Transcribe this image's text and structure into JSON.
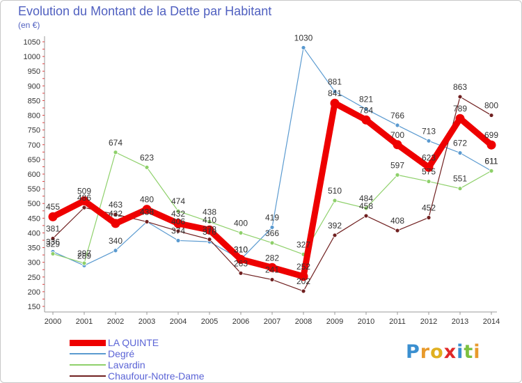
{
  "title": "Evolution du Montant de la Dette par Habitant",
  "subtitle": "(en €)",
  "logo": {
    "text": "Proxiti",
    "letters": [
      "P",
      "r",
      "o",
      "x",
      "i",
      "t",
      "i"
    ],
    "colors": [
      "#3a8fd0",
      "#e89a2c",
      "#e0b020",
      "#e02828",
      "#3a8fd0",
      "#7cc040",
      "#e89a2c"
    ]
  },
  "chart_data": {
    "type": "line",
    "title": "Evolution du Montant de la Dette par Habitant",
    "subtitle": "(en €)",
    "xlabel": "",
    "ylabel": "",
    "x": [
      "2000",
      "2001",
      "2002",
      "2003",
      "2004",
      "2005",
      "2006",
      "2007",
      "2008",
      "2009",
      "2010",
      "2011",
      "2012",
      "2013",
      "2014"
    ],
    "ylim": [
      150,
      1050
    ],
    "yticks": [
      150,
      200,
      250,
      300,
      350,
      400,
      450,
      500,
      550,
      600,
      650,
      700,
      750,
      800,
      850,
      900,
      950,
      1000,
      1050
    ],
    "grid": false,
    "legend_position": "bottom-left",
    "series": [
      {
        "name": "LA QUINTE",
        "color": "#ee0000",
        "values": [
          455,
          509,
          432,
          480,
          432,
          410,
          310,
          282,
          252,
          841,
          784,
          700,
          623,
          789,
          699
        ]
      },
      {
        "name": "Degré",
        "color": "#5a9ad0",
        "values": [
          336,
          289,
          340,
          438,
          374,
          370,
          310,
          419,
          1030,
          881,
          821,
          766,
          713,
          672,
          611
        ]
      },
      {
        "name": "Lavardin",
        "color": "#8ed06a",
        "values": [
          329,
          297,
          674,
          623,
          474,
          438,
          400,
          366,
          327,
          510,
          484,
          597,
          575,
          551,
          611
        ]
      },
      {
        "name": "Chaufour-Notre-Dame",
        "color": "#702020",
        "values": [
          381,
          486,
          463,
          438,
          406,
          378,
          263,
          241,
          202,
          392,
          458,
          408,
          452,
          863,
          800
        ]
      }
    ]
  }
}
